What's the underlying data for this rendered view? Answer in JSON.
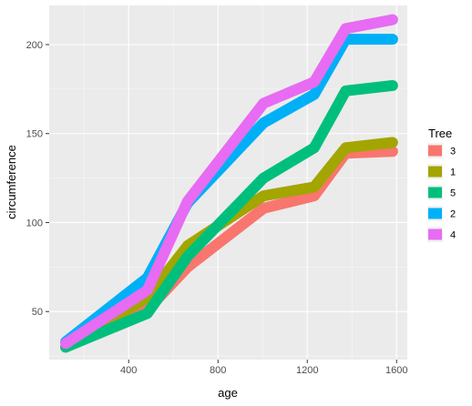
{
  "chart_data": {
    "type": "line",
    "xlabel": "age",
    "ylabel": "circumference",
    "xlim": [
      44,
      1648
    ],
    "ylim": [
      23,
      222
    ],
    "x_ticks": [
      400,
      800,
      1200,
      1600
    ],
    "x_tick_labels": [
      "400",
      "800",
      "1200",
      "1600"
    ],
    "y_ticks": [
      50,
      100,
      150,
      200
    ],
    "y_tick_labels": [
      "50",
      "100",
      "150",
      "200"
    ],
    "grid": true,
    "legend": {
      "title": "Tree",
      "position": "right"
    },
    "x": [
      118,
      484,
      664,
      1004,
      1231,
      1372,
      1582
    ],
    "series": [
      {
        "name": "3",
        "color": "#F8766D",
        "values": [
          30,
          51,
          75,
          108,
          115,
          139,
          140
        ]
      },
      {
        "name": "1",
        "color": "#A3A500",
        "values": [
          30,
          58,
          87,
          115,
          120,
          142,
          145
        ]
      },
      {
        "name": "5",
        "color": "#00BF7D",
        "values": [
          30,
          49,
          81,
          125,
          142,
          174,
          177
        ]
      },
      {
        "name": "2",
        "color": "#00B0F6",
        "values": [
          33,
          69,
          111,
          156,
          172,
          203,
          203
        ]
      },
      {
        "name": "4",
        "color": "#E76BF3",
        "values": [
          32,
          62,
          112,
          167,
          179,
          209,
          214
        ]
      }
    ]
  }
}
